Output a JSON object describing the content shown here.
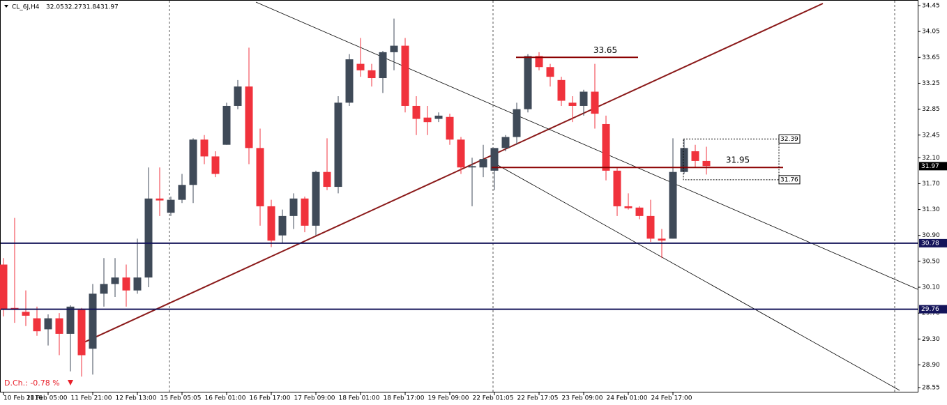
{
  "chart_data": {
    "type": "candlestick",
    "symbol": "CL_6J,H4",
    "daily_change": "D.Ch.: -0.78 %",
    "categories": [
      "10 Feb 2016",
      null,
      null,
      null,
      "11 Feb 05:00",
      null,
      null,
      null,
      "11 Feb 21:00",
      null,
      null,
      null,
      "12 Feb 13:00",
      null,
      null,
      null,
      "15 Feb 05:05",
      null,
      null,
      null,
      "16 Feb 01:00",
      null,
      null,
      null,
      "16 Feb 17:00",
      null,
      null,
      null,
      "17 Feb 09:00",
      null,
      null,
      null,
      "18 Feb 01:00",
      null,
      null,
      null,
      "18 Feb 17:00",
      null,
      null,
      null,
      "19 Feb 09:00",
      null,
      null,
      null,
      "22 Feb 01:05",
      null,
      null,
      null,
      "22 Feb 17:05",
      null,
      null,
      null,
      "23 Feb 09:00",
      null,
      null,
      null,
      "24 Feb 01:00",
      null,
      null,
      null,
      "24 Feb 17:00",
      null,
      null,
      null
    ],
    "open": [
      30.45,
      29.78,
      29.72,
      29.62,
      29.45,
      29.62,
      29.38,
      29.75,
      29.15,
      30.0,
      30.15,
      30.25,
      30.05,
      30.25,
      31.47,
      31.25,
      31.45,
      31.68,
      32.38,
      32.12,
      32.3,
      32.9,
      33.2,
      32.25,
      31.35,
      30.9,
      31.2,
      31.47,
      31.05,
      31.88,
      31.65,
      32.95,
      33.55,
      33.45,
      33.33,
      33.73,
      33.83,
      32.9,
      32.72,
      32.7,
      32.73,
      32.38,
      31.95,
      31.95,
      31.9,
      32.25,
      32.42,
      32.85,
      33.67,
      33.5,
      33.3,
      32.95,
      32.9,
      33.12,
      32.62,
      31.9,
      31.35,
      31.33,
      31.2,
      30.85,
      30.85,
      31.88,
      32.2,
      32.05
    ],
    "high": [
      30.55,
      31.17,
      30.05,
      29.8,
      29.68,
      29.7,
      29.82,
      29.78,
      30.15,
      30.55,
      30.55,
      30.45,
      30.85,
      31.95,
      31.95,
      31.5,
      31.85,
      32.4,
      32.45,
      32.2,
      32.95,
      33.3,
      33.8,
      32.55,
      31.45,
      31.3,
      31.55,
      31.5,
      31.9,
      32.4,
      33.05,
      33.7,
      33.95,
      33.55,
      33.75,
      34.25,
      33.95,
      33.05,
      32.9,
      32.8,
      32.78,
      32.42,
      32.1,
      32.3,
      32.25,
      32.45,
      32.95,
      33.7,
      33.73,
      33.55,
      33.35,
      33.05,
      33.15,
      33.55,
      32.75,
      31.95,
      31.55,
      31.35,
      31.45,
      31.0,
      32.4,
      32.38,
      32.3,
      32.27
    ],
    "low": [
      29.65,
      29.55,
      29.5,
      29.35,
      29.2,
      29.05,
      28.8,
      28.72,
      28.75,
      29.8,
      29.95,
      29.8,
      30.0,
      30.1,
      31.2,
      31.2,
      31.4,
      31.4,
      32.0,
      31.8,
      32.3,
      32.85,
      32.0,
      31.05,
      30.72,
      30.78,
      31.0,
      30.95,
      30.9,
      31.6,
      31.55,
      32.9,
      33.35,
      33.2,
      33.1,
      33.45,
      32.8,
      32.45,
      32.45,
      32.65,
      32.3,
      31.85,
      31.35,
      31.8,
      31.6,
      32.2,
      32.3,
      32.8,
      33.45,
      33.2,
      32.9,
      32.65,
      32.75,
      32.55,
      31.75,
      31.2,
      31.3,
      31.15,
      30.8,
      30.55,
      30.85,
      31.85,
      31.95,
      31.84
    ],
    "close": [
      29.75,
      29.75,
      29.66,
      29.42,
      29.62,
      29.38,
      29.8,
      29.05,
      30.0,
      30.15,
      30.25,
      30.05,
      30.25,
      31.47,
      31.44,
      31.45,
      31.68,
      32.38,
      32.12,
      31.85,
      32.9,
      33.2,
      32.25,
      31.35,
      30.82,
      31.2,
      31.47,
      31.05,
      31.88,
      31.65,
      32.95,
      33.62,
      33.45,
      33.33,
      33.73,
      33.83,
      32.9,
      32.7,
      32.65,
      32.75,
      32.38,
      31.95,
      31.97,
      32.08,
      32.25,
      32.42,
      32.85,
      33.67,
      33.5,
      33.35,
      32.98,
      32.9,
      33.12,
      32.78,
      31.9,
      31.35,
      31.32,
      31.2,
      30.85,
      30.82,
      31.88,
      32.25,
      32.05,
      31.97
    ],
    "up_color": "#3f4a58",
    "down_color": "#f0323c",
    "ylim": [
      28.55,
      34.45
    ],
    "yticks": [
      28.55,
      {
        "value": 28.9,
        "label": "28.90"
      },
      {
        "value": 29.3,
        "label": "29.30"
      },
      {
        "value": 29.7,
        "label": "29.70"
      },
      {
        "value": 30.1,
        "label": "30.10"
      },
      {
        "value": 30.5,
        "label": "30.50"
      },
      {
        "value": 30.9,
        "label": "30.90"
      },
      {
        "value": 31.3,
        "label": "31.30"
      },
      {
        "value": 31.7,
        "label": "31.70"
      },
      {
        "value": 32.1,
        "label": "32.10"
      },
      32.45,
      32.85,
      33.25,
      33.65,
      34.05,
      34.45
    ],
    "price_lines": [
      {
        "value": 30.78,
        "color": "#14145a"
      },
      {
        "value": 29.76,
        "color": "#14145a"
      }
    ],
    "levels": [
      {
        "value": 33.65,
        "color": "#8b0000"
      },
      {
        "value": 31.95,
        "color": "#8b0000"
      }
    ],
    "range_box": [
      32.39,
      31.76
    ]
  }
}
